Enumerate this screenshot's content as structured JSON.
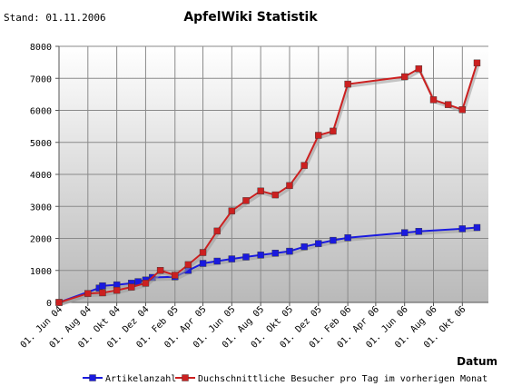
{
  "stand": "Stand: 01.11.2006",
  "chart_data": {
    "type": "line",
    "title": "ApfelWiki Statistik",
    "xlabel": "Datum",
    "ylabel": "",
    "ylim": [
      0,
      8000
    ],
    "yticks": [
      0,
      1000,
      2000,
      3000,
      4000,
      5000,
      6000,
      7000,
      8000
    ],
    "xlim": [
      "2004-06-01",
      "2006-11-25"
    ],
    "xticks": [
      {
        "date": "2004-06-01",
        "label": "01. Jun 04"
      },
      {
        "date": "2004-08-01",
        "label": "01. Aug 04"
      },
      {
        "date": "2004-10-01",
        "label": "01. Okt 04"
      },
      {
        "date": "2004-12-01",
        "label": "01. Dez 04"
      },
      {
        "date": "2005-02-01",
        "label": "01. Feb 05"
      },
      {
        "date": "2005-04-01",
        "label": "01. Apr 05"
      },
      {
        "date": "2005-06-01",
        "label": "01. Jun 05"
      },
      {
        "date": "2005-08-01",
        "label": "01. Aug 05"
      },
      {
        "date": "2005-10-01",
        "label": "01. Okt 05"
      },
      {
        "date": "2005-12-01",
        "label": "01. Dez 05"
      },
      {
        "date": "2006-02-01",
        "label": "01. Feb 06"
      },
      {
        "date": "2006-04-01",
        "label": "01. Apr 06"
      },
      {
        "date": "2006-06-01",
        "label": "01. Jun 06"
      },
      {
        "date": "2006-08-01",
        "label": "01. Aug 06"
      },
      {
        "date": "2006-10-01",
        "label": "01. Okt 06"
      }
    ],
    "grid": true,
    "legend": "bottom",
    "series": [
      {
        "name": "Artikelanzahl",
        "color": "#1a1adf",
        "points": [
          [
            "2004-06-01",
            0
          ],
          [
            "2004-08-25",
            450
          ],
          [
            "2004-09-01",
            520
          ],
          [
            "2004-10-01",
            550
          ],
          [
            "2004-11-01",
            600
          ],
          [
            "2004-11-15",
            650
          ],
          [
            "2004-12-01",
            700
          ],
          [
            "2004-12-15",
            780
          ],
          [
            "2005-02-01",
            800
          ],
          [
            "2005-03-01",
            1000
          ],
          [
            "2005-04-01",
            1220
          ],
          [
            "2005-05-01",
            1290
          ],
          [
            "2005-06-01",
            1360
          ],
          [
            "2005-07-01",
            1420
          ],
          [
            "2005-08-01",
            1480
          ],
          [
            "2005-09-01",
            1540
          ],
          [
            "2005-10-01",
            1600
          ],
          [
            "2005-11-01",
            1740
          ],
          [
            "2005-12-01",
            1840
          ],
          [
            "2006-01-01",
            1940
          ],
          [
            "2006-02-01",
            2020
          ],
          [
            "2006-06-01",
            2180
          ],
          [
            "2006-07-01",
            2220
          ],
          [
            "2006-10-01",
            2300
          ],
          [
            "2006-11-01",
            2340
          ]
        ]
      },
      {
        "name": "Duchschnittliche Besucher pro Tag im vorherigen Monat",
        "color": "#cc2020",
        "points": [
          [
            "2004-06-01",
            0
          ],
          [
            "2004-08-01",
            280
          ],
          [
            "2004-09-01",
            300
          ],
          [
            "2004-10-01",
            380
          ],
          [
            "2004-11-01",
            480
          ],
          [
            "2004-12-01",
            600
          ],
          [
            "2005-01-01",
            1000
          ],
          [
            "2005-02-01",
            850
          ],
          [
            "2005-03-01",
            1180
          ],
          [
            "2005-04-01",
            1560
          ],
          [
            "2005-05-01",
            2230
          ],
          [
            "2005-06-01",
            2860
          ],
          [
            "2005-07-01",
            3180
          ],
          [
            "2005-08-01",
            3480
          ],
          [
            "2005-09-01",
            3360
          ],
          [
            "2005-10-01",
            3650
          ],
          [
            "2005-11-01",
            4280
          ],
          [
            "2005-12-01",
            5220
          ],
          [
            "2006-01-01",
            5350
          ],
          [
            "2006-02-01",
            6820
          ],
          [
            "2006-06-01",
            7050
          ],
          [
            "2006-07-01",
            7300
          ],
          [
            "2006-08-01",
            6330
          ],
          [
            "2006-09-01",
            6180
          ],
          [
            "2006-10-01",
            6020
          ],
          [
            "2006-11-01",
            7480
          ]
        ]
      }
    ]
  }
}
